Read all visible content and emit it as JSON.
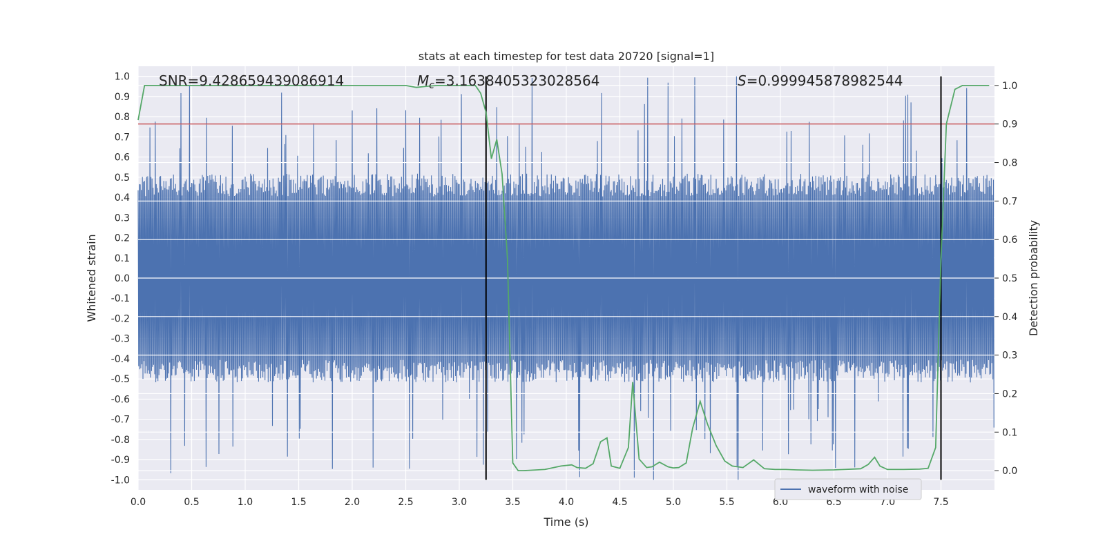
{
  "chart_data": {
    "type": "line",
    "title": "stats at each timestep for test data 20720 [signal=1]",
    "xlabel": "Time (s)",
    "ylabel_left": "Whitened strain",
    "ylabel_right": "Detection probability",
    "xlim": [
      0.0,
      8.0
    ],
    "ylim_left": [
      -1.05,
      1.05
    ],
    "ylim_right": [
      -0.05,
      1.05
    ],
    "x_ticks": [
      0.0,
      0.5,
      1.0,
      1.5,
      2.0,
      2.5,
      3.0,
      3.5,
      4.0,
      4.5,
      5.0,
      5.5,
      6.0,
      6.5,
      7.0,
      7.5
    ],
    "x_tick_labels": [
      "0.0",
      "0.5",
      "1.0",
      "1.5",
      "2.0",
      "2.5",
      "3.0",
      "3.5",
      "4.0",
      "4.5",
      "5.0",
      "5.5",
      "6.0",
      "6.5",
      "7.0",
      "7.5"
    ],
    "y_left_ticks": [
      1.0,
      0.9,
      0.8,
      0.7,
      0.6,
      0.5,
      0.4,
      0.3,
      0.2,
      0.1,
      0.0,
      -0.1,
      -0.2,
      -0.3,
      -0.4,
      -0.5,
      -0.6,
      -0.7,
      -0.8,
      -0.9,
      -1.0
    ],
    "y_left_tick_labels": [
      "1.0",
      "0.9",
      "0.8",
      "0.7",
      "0.6",
      "0.5",
      "0.4",
      "0.3",
      "0.2",
      "0.1",
      "0.0",
      "-0.1",
      "-0.2",
      "-0.3",
      "-0.4",
      "-0.5",
      "-0.6",
      "-0.7",
      "-0.8",
      "-0.9",
      "-1.0"
    ],
    "y_right_ticks": [
      1.0,
      0.9,
      0.8,
      0.7,
      0.6,
      0.5,
      0.4,
      0.3,
      0.2,
      0.1,
      0.0
    ],
    "y_right_tick_labels": [
      "1.0",
      "0.9",
      "0.8",
      "0.7",
      "0.6",
      "0.5",
      "0.4",
      "0.3",
      "0.2",
      "0.1",
      "0.0"
    ],
    "annotations": {
      "snr": "SNR=9.428659439086914",
      "mc_symbol": "M",
      "mc_sub": "c",
      "mc_value": "=3.1638405323028564",
      "s_symbol": "S",
      "s_value": "=0.999945878982544"
    },
    "legend": {
      "label": "waveform with noise",
      "loc": "lower-right"
    },
    "threshold_line": {
      "axis": "right",
      "value": 0.9,
      "color": "#c44e52"
    },
    "vertical_lines": [
      {
        "x": 3.25,
        "y_left_range": [
          -1.0,
          1.0
        ],
        "color": "#000000"
      },
      {
        "x": 7.5,
        "y_left_range": [
          -1.0,
          1.0
        ],
        "color": "#000000"
      }
    ],
    "series": [
      {
        "name": "waveform with noise",
        "axis": "left",
        "color": "#4c72b0",
        "kind": "noise",
        "typical_amplitude": 0.45,
        "max_peak": 1.0,
        "min_peak": -0.96,
        "samples": 4096
      },
      {
        "name": "detection probability",
        "axis": "right",
        "color": "#55a868",
        "x": [
          0.0,
          0.06,
          0.2,
          0.5,
          1.0,
          1.5,
          2.0,
          2.5,
          2.6,
          2.7,
          2.8,
          3.0,
          3.15,
          3.2,
          3.25,
          3.3,
          3.35,
          3.4,
          3.45,
          3.5,
          3.55,
          3.6,
          3.8,
          3.95,
          4.05,
          4.1,
          4.18,
          4.25,
          4.32,
          4.38,
          4.42,
          4.5,
          4.58,
          4.62,
          4.68,
          4.75,
          4.8,
          4.87,
          4.95,
          5.0,
          5.05,
          5.12,
          5.18,
          5.25,
          5.32,
          5.4,
          5.48,
          5.55,
          5.65,
          5.75,
          5.85,
          5.95,
          6.05,
          6.15,
          6.3,
          6.5,
          6.6,
          6.75,
          6.82,
          6.88,
          6.93,
          7.0,
          7.15,
          7.3,
          7.38,
          7.45,
          7.5,
          7.55,
          7.63,
          7.7,
          7.8,
          7.95
        ],
        "y": [
          0.91,
          1.0,
          1.0,
          1.0,
          1.0,
          1.0,
          1.0,
          1.0,
          0.995,
          0.998,
          1.0,
          1.0,
          1.0,
          0.98,
          0.93,
          0.81,
          0.86,
          0.77,
          0.55,
          0.02,
          0.0,
          0.0,
          0.003,
          0.012,
          0.015,
          0.008,
          0.006,
          0.018,
          0.075,
          0.085,
          0.012,
          0.006,
          0.06,
          0.23,
          0.03,
          0.008,
          0.01,
          0.022,
          0.01,
          0.007,
          0.008,
          0.02,
          0.11,
          0.18,
          0.12,
          0.065,
          0.025,
          0.012,
          0.008,
          0.028,
          0.005,
          0.003,
          0.003,
          0.002,
          0.001,
          0.002,
          0.003,
          0.005,
          0.016,
          0.035,
          0.012,
          0.003,
          0.003,
          0.004,
          0.006,
          0.06,
          0.55,
          0.9,
          0.99,
          1.0,
          1.0,
          1.0
        ]
      }
    ]
  }
}
